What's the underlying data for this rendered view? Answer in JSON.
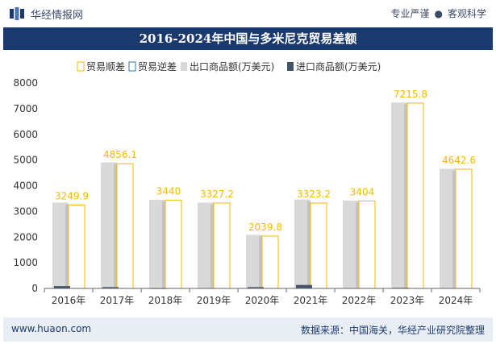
{
  "header": {
    "brand": "华经情报网",
    "slogan_left": "专业严谨",
    "slogan_right": "客观科学"
  },
  "footer": {
    "url": "www.huaon.com",
    "source": "数据来源：中国海关，华经产业研究院整理"
  },
  "colors": {
    "header_bg": "#1a3a6e",
    "export_bar": "#d9d9d9",
    "import_bar": "#44546a",
    "surplus_outline": "#f5b800",
    "deficit_outline": "#2e75b6",
    "label": "#f5b800"
  },
  "chart_data": {
    "type": "bar",
    "title": "2016-2024年中国与多米尼克贸易差额",
    "categories": [
      "2016年",
      "2017年",
      "2018年",
      "2019年",
      "2020年",
      "2021年",
      "2022年",
      "2023年",
      "2024年"
    ],
    "series": [
      {
        "name": "贸易顺差",
        "values": [
          3249.9,
          4856.1,
          3440,
          3327.2,
          2039.8,
          3323.2,
          3404,
          7215.8,
          4642.6
        ]
      },
      {
        "name": "贸易逆差",
        "values": [
          0,
          0,
          0,
          0,
          0,
          0,
          0,
          0,
          0
        ]
      },
      {
        "name": "出口商品额(万美元)",
        "values": [
          3340,
          4910,
          3450,
          3340,
          2090,
          3460,
          3420,
          7240,
          4660
        ]
      },
      {
        "name": "进口商品额(万美元)",
        "values": [
          90,
          50,
          10,
          15,
          50,
          135,
          15,
          25,
          15
        ]
      }
    ],
    "data_labels": [
      "3249.9",
      "4856.1",
      "3440",
      "3327.2",
      "2039.8",
      "3323.2",
      "3404",
      "7215.8",
      "4642.6"
    ],
    "y_ticks": [
      "0",
      "1000",
      "2000",
      "3000",
      "4000",
      "5000",
      "6000",
      "7000",
      "8000"
    ],
    "ylim": [
      0,
      8000
    ],
    "legend": "top",
    "grid": false
  }
}
